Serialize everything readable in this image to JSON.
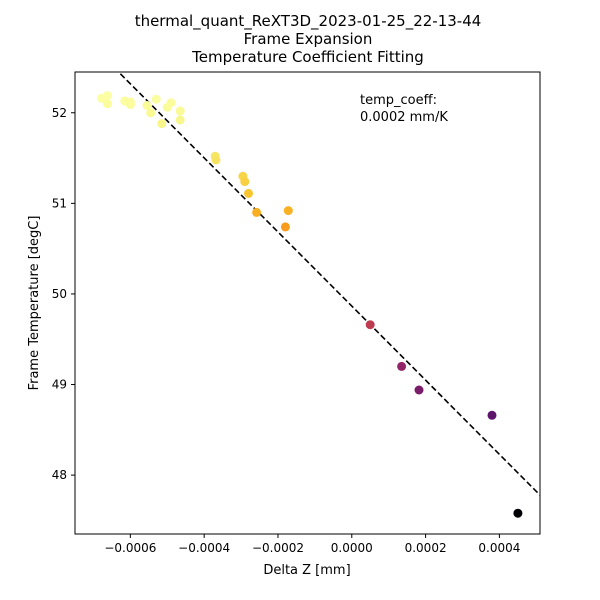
{
  "chart_data": {
    "type": "scatter",
    "title_lines": [
      "thermal_quant_ReXT3D_2023-01-25_22-13-44",
      "Frame Expansion",
      "Temperature Coefficient Fitting"
    ],
    "xlabel": "Delta Z [mm]",
    "ylabel": "Frame Temperature [degC]",
    "xlim": [
      -0.00075,
      0.00051
    ],
    "ylim": [
      47.35,
      52.45
    ],
    "xticks": [
      -0.0006,
      -0.0004,
      -0.0002,
      0.0,
      0.0002,
      0.0004
    ],
    "xtick_labels": [
      "−0.0006",
      "−0.0004",
      "−0.0002",
      "0.0000",
      "0.0002",
      "0.0004"
    ],
    "yticks": [
      48,
      49,
      50,
      51,
      52
    ],
    "ytick_labels": [
      "48",
      "49",
      "50",
      "51",
      "52"
    ],
    "grid": false,
    "colormap": "inferno",
    "color_range": [
      47.58,
      52.2
    ],
    "points": [
      {
        "x": -0.000678,
        "y": 52.16
      },
      {
        "x": -0.000662,
        "y": 52.19
      },
      {
        "x": -0.000662,
        "y": 52.1
      },
      {
        "x": -0.000615,
        "y": 52.13
      },
      {
        "x": -0.0006,
        "y": 52.09
      },
      {
        "x": -0.0006,
        "y": 52.12
      },
      {
        "x": -0.000555,
        "y": 52.08
      },
      {
        "x": -0.000545,
        "y": 52.0
      },
      {
        "x": -0.00053,
        "y": 52.15
      },
      {
        "x": -0.000515,
        "y": 51.88
      },
      {
        "x": -0.0005,
        "y": 52.06
      },
      {
        "x": -0.00049,
        "y": 52.11
      },
      {
        "x": -0.000465,
        "y": 52.02
      },
      {
        "x": -0.000465,
        "y": 51.92
      },
      {
        "x": -0.00037,
        "y": 51.52
      },
      {
        "x": -0.000368,
        "y": 51.48
      },
      {
        "x": -0.000295,
        "y": 51.3
      },
      {
        "x": -0.00029,
        "y": 51.24
      },
      {
        "x": -0.00028,
        "y": 51.11
      },
      {
        "x": -0.000258,
        "y": 50.9
      },
      {
        "x": -0.00018,
        "y": 50.74
      },
      {
        "x": -0.000172,
        "y": 50.92
      },
      {
        "x": 5e-05,
        "y": 49.66
      },
      {
        "x": 0.000135,
        "y": 49.2
      },
      {
        "x": 0.000182,
        "y": 48.94
      },
      {
        "x": 0.00038,
        "y": 48.66
      },
      {
        "x": 0.00045,
        "y": 47.58
      }
    ],
    "fit_line": {
      "style": "dashed",
      "color": "#000000",
      "x": [
        -0.000627,
        0.00051
      ],
      "y": [
        52.43,
        47.78
      ]
    },
    "annotation": [
      "temp_coeff:",
      "0.0002 mm/K"
    ]
  }
}
